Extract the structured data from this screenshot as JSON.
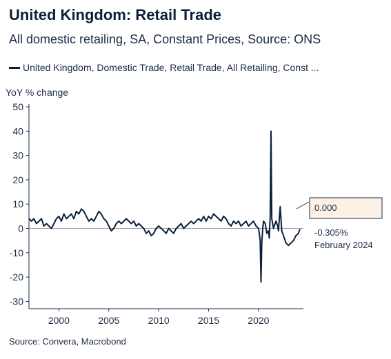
{
  "header": {
    "title": "United Kingdom: Retail Trade",
    "subtitle": "All domestic retailing, SA, Constant Prices, Source: ONS"
  },
  "legend": {
    "label": "United Kingdom, Domestic Trade, Retail Trade, All Retailing, Const ..."
  },
  "footer": {
    "source": "Source: Convera, Macrobond"
  },
  "annotation": {
    "zero_box": "0.000",
    "last_value": "-0.305%",
    "last_date": "February 2024"
  },
  "colors": {
    "series": "#0c1f3a",
    "annotation_box": "#fdf1e6"
  },
  "chart_data": {
    "type": "line",
    "title": "United Kingdom: Retail Trade",
    "subtitle": "All domestic retailing, SA, Constant Prices, Source: ONS",
    "ylabel": "YoY % change",
    "xlabel": "",
    "xlim": [
      1997,
      2024.5
    ],
    "ylim": [
      -33,
      52
    ],
    "yticks": [
      50,
      40,
      30,
      20,
      10,
      0,
      -10,
      -20,
      -30
    ],
    "xticks": [
      2000,
      2005,
      2010,
      2015,
      2020
    ],
    "grid": false,
    "legend_position": "top",
    "series": [
      {
        "name": "United Kingdom, Domestic Trade, Retail Trade, All Retailing, Const ...",
        "x": [
          1997.0,
          1997.25,
          1997.5,
          1997.75,
          1998.0,
          1998.25,
          1998.5,
          1998.75,
          1999.0,
          1999.25,
          1999.5,
          1999.75,
          2000.0,
          2000.25,
          2000.5,
          2000.75,
          2001.0,
          2001.25,
          2001.5,
          2001.75,
          2002.0,
          2002.25,
          2002.5,
          2002.75,
          2003.0,
          2003.25,
          2003.5,
          2003.75,
          2004.0,
          2004.25,
          2004.5,
          2004.75,
          2005.0,
          2005.25,
          2005.5,
          2005.75,
          2006.0,
          2006.25,
          2006.5,
          2006.75,
          2007.0,
          2007.25,
          2007.5,
          2007.75,
          2008.0,
          2008.25,
          2008.5,
          2008.75,
          2009.0,
          2009.25,
          2009.5,
          2009.75,
          2010.0,
          2010.25,
          2010.5,
          2010.75,
          2011.0,
          2011.25,
          2011.5,
          2011.75,
          2012.0,
          2012.25,
          2012.5,
          2012.75,
          2013.0,
          2013.25,
          2013.5,
          2013.75,
          2014.0,
          2014.25,
          2014.5,
          2014.75,
          2015.0,
          2015.25,
          2015.5,
          2015.75,
          2016.0,
          2016.25,
          2016.5,
          2016.75,
          2017.0,
          2017.25,
          2017.5,
          2017.75,
          2018.0,
          2018.25,
          2018.5,
          2018.75,
          2019.0,
          2019.25,
          2019.5,
          2019.75,
          2020.0,
          2020.08,
          2020.17,
          2020.25,
          2020.33,
          2020.42,
          2020.5,
          2020.67,
          2020.83,
          2021.0,
          2021.08,
          2021.17,
          2021.25,
          2021.33,
          2021.5,
          2021.75,
          2021.92,
          2022.0,
          2022.17,
          2022.33,
          2022.5,
          2022.75,
          2023.0,
          2023.25,
          2023.5,
          2023.75,
          2024.0,
          2024.08,
          2024.17
        ],
        "values": [
          4,
          3,
          4,
          2,
          3,
          4,
          1,
          2,
          1,
          0,
          2,
          4,
          5,
          3,
          6,
          4,
          5,
          6,
          4,
          7,
          6,
          8,
          7,
          5,
          3,
          4,
          3,
          5,
          7,
          6,
          4,
          3,
          1,
          -1,
          0,
          2,
          3,
          2,
          3,
          4,
          3,
          2,
          3,
          1,
          2,
          1,
          0,
          -2,
          -1,
          -3,
          -2,
          0,
          1,
          0,
          -1,
          -2,
          0,
          -1,
          -2,
          0,
          1,
          2,
          0,
          1,
          2,
          3,
          2,
          3,
          4,
          3,
          5,
          3,
          5,
          4,
          6,
          5,
          4,
          3,
          5,
          4,
          2,
          1,
          3,
          2,
          3,
          1,
          2,
          3,
          1,
          2,
          3,
          1,
          0,
          -2,
          -5,
          -22,
          -6,
          0,
          3,
          2,
          -2,
          -1,
          -4,
          5,
          40,
          4,
          0,
          3,
          1,
          -1,
          9,
          -1,
          -3,
          -6,
          -7,
          -6,
          -5,
          -3,
          -2,
          -1,
          -0.305
        ]
      }
    ]
  }
}
